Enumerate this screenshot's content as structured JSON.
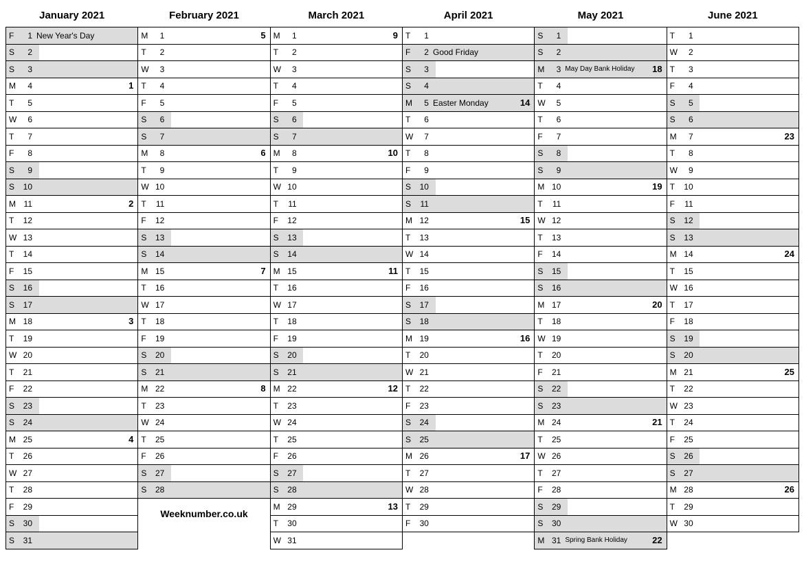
{
  "colors": {
    "shade": "#dcdcdc",
    "bg": "#ffffff",
    "border": "#000000"
  },
  "brand": "Weeknumber.co.uk",
  "brand_month_index": 1,
  "months": [
    {
      "title": "January 2021",
      "days": [
        {
          "dow": "F",
          "n": 1,
          "label": "New Year's Day",
          "shade": "full"
        },
        {
          "dow": "S",
          "n": 2,
          "shade": "partial"
        },
        {
          "dow": "S",
          "n": 3,
          "shade": "full"
        },
        {
          "dow": "M",
          "n": 4,
          "wk": 1
        },
        {
          "dow": "T",
          "n": 5
        },
        {
          "dow": "W",
          "n": 6
        },
        {
          "dow": "T",
          "n": 7
        },
        {
          "dow": "F",
          "n": 8
        },
        {
          "dow": "S",
          "n": 9,
          "shade": "partial"
        },
        {
          "dow": "S",
          "n": 10,
          "shade": "full"
        },
        {
          "dow": "M",
          "n": 11,
          "wk": 2
        },
        {
          "dow": "T",
          "n": 12
        },
        {
          "dow": "W",
          "n": 13
        },
        {
          "dow": "T",
          "n": 14
        },
        {
          "dow": "F",
          "n": 15
        },
        {
          "dow": "S",
          "n": 16,
          "shade": "partial"
        },
        {
          "dow": "S",
          "n": 17,
          "shade": "full"
        },
        {
          "dow": "M",
          "n": 18,
          "wk": 3
        },
        {
          "dow": "T",
          "n": 19
        },
        {
          "dow": "W",
          "n": 20
        },
        {
          "dow": "T",
          "n": 21
        },
        {
          "dow": "F",
          "n": 22
        },
        {
          "dow": "S",
          "n": 23,
          "shade": "partial"
        },
        {
          "dow": "S",
          "n": 24,
          "shade": "full"
        },
        {
          "dow": "M",
          "n": 25,
          "wk": 4
        },
        {
          "dow": "T",
          "n": 26
        },
        {
          "dow": "W",
          "n": 27
        },
        {
          "dow": "T",
          "n": 28
        },
        {
          "dow": "F",
          "n": 29
        },
        {
          "dow": "S",
          "n": 30,
          "shade": "partial"
        },
        {
          "dow": "S",
          "n": 31,
          "shade": "full"
        }
      ]
    },
    {
      "title": "February 2021",
      "days": [
        {
          "dow": "M",
          "n": 1,
          "wk": 5
        },
        {
          "dow": "T",
          "n": 2
        },
        {
          "dow": "W",
          "n": 3
        },
        {
          "dow": "T",
          "n": 4
        },
        {
          "dow": "F",
          "n": 5
        },
        {
          "dow": "S",
          "n": 6,
          "shade": "partial"
        },
        {
          "dow": "S",
          "n": 7,
          "shade": "full"
        },
        {
          "dow": "M",
          "n": 8,
          "wk": 6
        },
        {
          "dow": "T",
          "n": 9
        },
        {
          "dow": "W",
          "n": 10
        },
        {
          "dow": "T",
          "n": 11
        },
        {
          "dow": "F",
          "n": 12
        },
        {
          "dow": "S",
          "n": 13,
          "shade": "partial"
        },
        {
          "dow": "S",
          "n": 14,
          "shade": "full"
        },
        {
          "dow": "M",
          "n": 15,
          "wk": 7
        },
        {
          "dow": "T",
          "n": 16
        },
        {
          "dow": "W",
          "n": 17
        },
        {
          "dow": "T",
          "n": 18
        },
        {
          "dow": "F",
          "n": 19
        },
        {
          "dow": "S",
          "n": 20,
          "shade": "partial"
        },
        {
          "dow": "S",
          "n": 21,
          "shade": "full"
        },
        {
          "dow": "M",
          "n": 22,
          "wk": 8
        },
        {
          "dow": "T",
          "n": 23
        },
        {
          "dow": "W",
          "n": 24
        },
        {
          "dow": "T",
          "n": 25
        },
        {
          "dow": "F",
          "n": 26
        },
        {
          "dow": "S",
          "n": 27,
          "shade": "partial"
        },
        {
          "dow": "S",
          "n": 28,
          "shade": "full"
        }
      ]
    },
    {
      "title": "March 2021",
      "days": [
        {
          "dow": "M",
          "n": 1,
          "wk": 9
        },
        {
          "dow": "T",
          "n": 2
        },
        {
          "dow": "W",
          "n": 3
        },
        {
          "dow": "T",
          "n": 4
        },
        {
          "dow": "F",
          "n": 5
        },
        {
          "dow": "S",
          "n": 6,
          "shade": "partial"
        },
        {
          "dow": "S",
          "n": 7,
          "shade": "full"
        },
        {
          "dow": "M",
          "n": 8,
          "wk": 10
        },
        {
          "dow": "T",
          "n": 9
        },
        {
          "dow": "W",
          "n": 10
        },
        {
          "dow": "T",
          "n": 11
        },
        {
          "dow": "F",
          "n": 12
        },
        {
          "dow": "S",
          "n": 13,
          "shade": "partial"
        },
        {
          "dow": "S",
          "n": 14,
          "shade": "full"
        },
        {
          "dow": "M",
          "n": 15,
          "wk": 11
        },
        {
          "dow": "T",
          "n": 16
        },
        {
          "dow": "W",
          "n": 17
        },
        {
          "dow": "T",
          "n": 18
        },
        {
          "dow": "F",
          "n": 19
        },
        {
          "dow": "S",
          "n": 20,
          "shade": "partial"
        },
        {
          "dow": "S",
          "n": 21,
          "shade": "full"
        },
        {
          "dow": "M",
          "n": 22,
          "wk": 12
        },
        {
          "dow": "T",
          "n": 23
        },
        {
          "dow": "W",
          "n": 24
        },
        {
          "dow": "T",
          "n": 25
        },
        {
          "dow": "F",
          "n": 26
        },
        {
          "dow": "S",
          "n": 27,
          "shade": "partial"
        },
        {
          "dow": "S",
          "n": 28,
          "shade": "full"
        },
        {
          "dow": "M",
          "n": 29,
          "wk": 13
        },
        {
          "dow": "T",
          "n": 30
        },
        {
          "dow": "W",
          "n": 31
        }
      ]
    },
    {
      "title": "April 2021",
      "days": [
        {
          "dow": "T",
          "n": 1
        },
        {
          "dow": "F",
          "n": 2,
          "label": "Good Friday",
          "shade": "full"
        },
        {
          "dow": "S",
          "n": 3,
          "shade": "partial"
        },
        {
          "dow": "S",
          "n": 4,
          "shade": "full"
        },
        {
          "dow": "M",
          "n": 5,
          "label": "Easter Monday",
          "wk": 14,
          "shade": "full"
        },
        {
          "dow": "T",
          "n": 6
        },
        {
          "dow": "W",
          "n": 7
        },
        {
          "dow": "T",
          "n": 8
        },
        {
          "dow": "F",
          "n": 9
        },
        {
          "dow": "S",
          "n": 10,
          "shade": "partial"
        },
        {
          "dow": "S",
          "n": 11,
          "shade": "full"
        },
        {
          "dow": "M",
          "n": 12,
          "wk": 15
        },
        {
          "dow": "T",
          "n": 13
        },
        {
          "dow": "W",
          "n": 14
        },
        {
          "dow": "T",
          "n": 15
        },
        {
          "dow": "F",
          "n": 16
        },
        {
          "dow": "S",
          "n": 17,
          "shade": "partial"
        },
        {
          "dow": "S",
          "n": 18,
          "shade": "full"
        },
        {
          "dow": "M",
          "n": 19,
          "wk": 16
        },
        {
          "dow": "T",
          "n": 20
        },
        {
          "dow": "W",
          "n": 21
        },
        {
          "dow": "T",
          "n": 22
        },
        {
          "dow": "F",
          "n": 23
        },
        {
          "dow": "S",
          "n": 24,
          "shade": "partial"
        },
        {
          "dow": "S",
          "n": 25,
          "shade": "full"
        },
        {
          "dow": "M",
          "n": 26,
          "wk": 17
        },
        {
          "dow": "T",
          "n": 27
        },
        {
          "dow": "W",
          "n": 28
        },
        {
          "dow": "T",
          "n": 29
        },
        {
          "dow": "F",
          "n": 30
        }
      ]
    },
    {
      "title": "May 2021",
      "days": [
        {
          "dow": "S",
          "n": 1,
          "shade": "partial"
        },
        {
          "dow": "S",
          "n": 2,
          "shade": "full"
        },
        {
          "dow": "M",
          "n": 3,
          "label": "May Day Bank Holiday",
          "small": true,
          "wk": 18,
          "shade": "full"
        },
        {
          "dow": "T",
          "n": 4
        },
        {
          "dow": "W",
          "n": 5
        },
        {
          "dow": "T",
          "n": 6
        },
        {
          "dow": "F",
          "n": 7
        },
        {
          "dow": "S",
          "n": 8,
          "shade": "partial"
        },
        {
          "dow": "S",
          "n": 9,
          "shade": "full"
        },
        {
          "dow": "M",
          "n": 10,
          "wk": 19
        },
        {
          "dow": "T",
          "n": 11
        },
        {
          "dow": "W",
          "n": 12
        },
        {
          "dow": "T",
          "n": 13
        },
        {
          "dow": "F",
          "n": 14
        },
        {
          "dow": "S",
          "n": 15,
          "shade": "partial"
        },
        {
          "dow": "S",
          "n": 16,
          "shade": "full"
        },
        {
          "dow": "M",
          "n": 17,
          "wk": 20
        },
        {
          "dow": "T",
          "n": 18
        },
        {
          "dow": "W",
          "n": 19
        },
        {
          "dow": "T",
          "n": 20
        },
        {
          "dow": "F",
          "n": 21
        },
        {
          "dow": "S",
          "n": 22,
          "shade": "partial"
        },
        {
          "dow": "S",
          "n": 23,
          "shade": "full"
        },
        {
          "dow": "M",
          "n": 24,
          "wk": 21
        },
        {
          "dow": "T",
          "n": 25
        },
        {
          "dow": "W",
          "n": 26
        },
        {
          "dow": "T",
          "n": 27
        },
        {
          "dow": "F",
          "n": 28
        },
        {
          "dow": "S",
          "n": 29,
          "shade": "partial"
        },
        {
          "dow": "S",
          "n": 30,
          "shade": "full"
        },
        {
          "dow": "M",
          "n": 31,
          "label": "Spring Bank Holiday",
          "small": true,
          "wk": 22,
          "shade": "full"
        }
      ]
    },
    {
      "title": "June 2021",
      "days": [
        {
          "dow": "T",
          "n": 1
        },
        {
          "dow": "W",
          "n": 2
        },
        {
          "dow": "T",
          "n": 3
        },
        {
          "dow": "F",
          "n": 4
        },
        {
          "dow": "S",
          "n": 5,
          "shade": "partial"
        },
        {
          "dow": "S",
          "n": 6,
          "shade": "full"
        },
        {
          "dow": "M",
          "n": 7,
          "wk": 23
        },
        {
          "dow": "T",
          "n": 8
        },
        {
          "dow": "W",
          "n": 9
        },
        {
          "dow": "T",
          "n": 10
        },
        {
          "dow": "F",
          "n": 11
        },
        {
          "dow": "S",
          "n": 12,
          "shade": "partial"
        },
        {
          "dow": "S",
          "n": 13,
          "shade": "full"
        },
        {
          "dow": "M",
          "n": 14,
          "wk": 24
        },
        {
          "dow": "T",
          "n": 15
        },
        {
          "dow": "W",
          "n": 16
        },
        {
          "dow": "T",
          "n": 17
        },
        {
          "dow": "F",
          "n": 18
        },
        {
          "dow": "S",
          "n": 19,
          "shade": "partial"
        },
        {
          "dow": "S",
          "n": 20,
          "shade": "full"
        },
        {
          "dow": "M",
          "n": 21,
          "wk": 25
        },
        {
          "dow": "T",
          "n": 22
        },
        {
          "dow": "W",
          "n": 23
        },
        {
          "dow": "T",
          "n": 24
        },
        {
          "dow": "F",
          "n": 25
        },
        {
          "dow": "S",
          "n": 26,
          "shade": "partial"
        },
        {
          "dow": "S",
          "n": 27,
          "shade": "full"
        },
        {
          "dow": "M",
          "n": 28,
          "wk": 26
        },
        {
          "dow": "T",
          "n": 29
        },
        {
          "dow": "W",
          "n": 30
        }
      ]
    }
  ]
}
